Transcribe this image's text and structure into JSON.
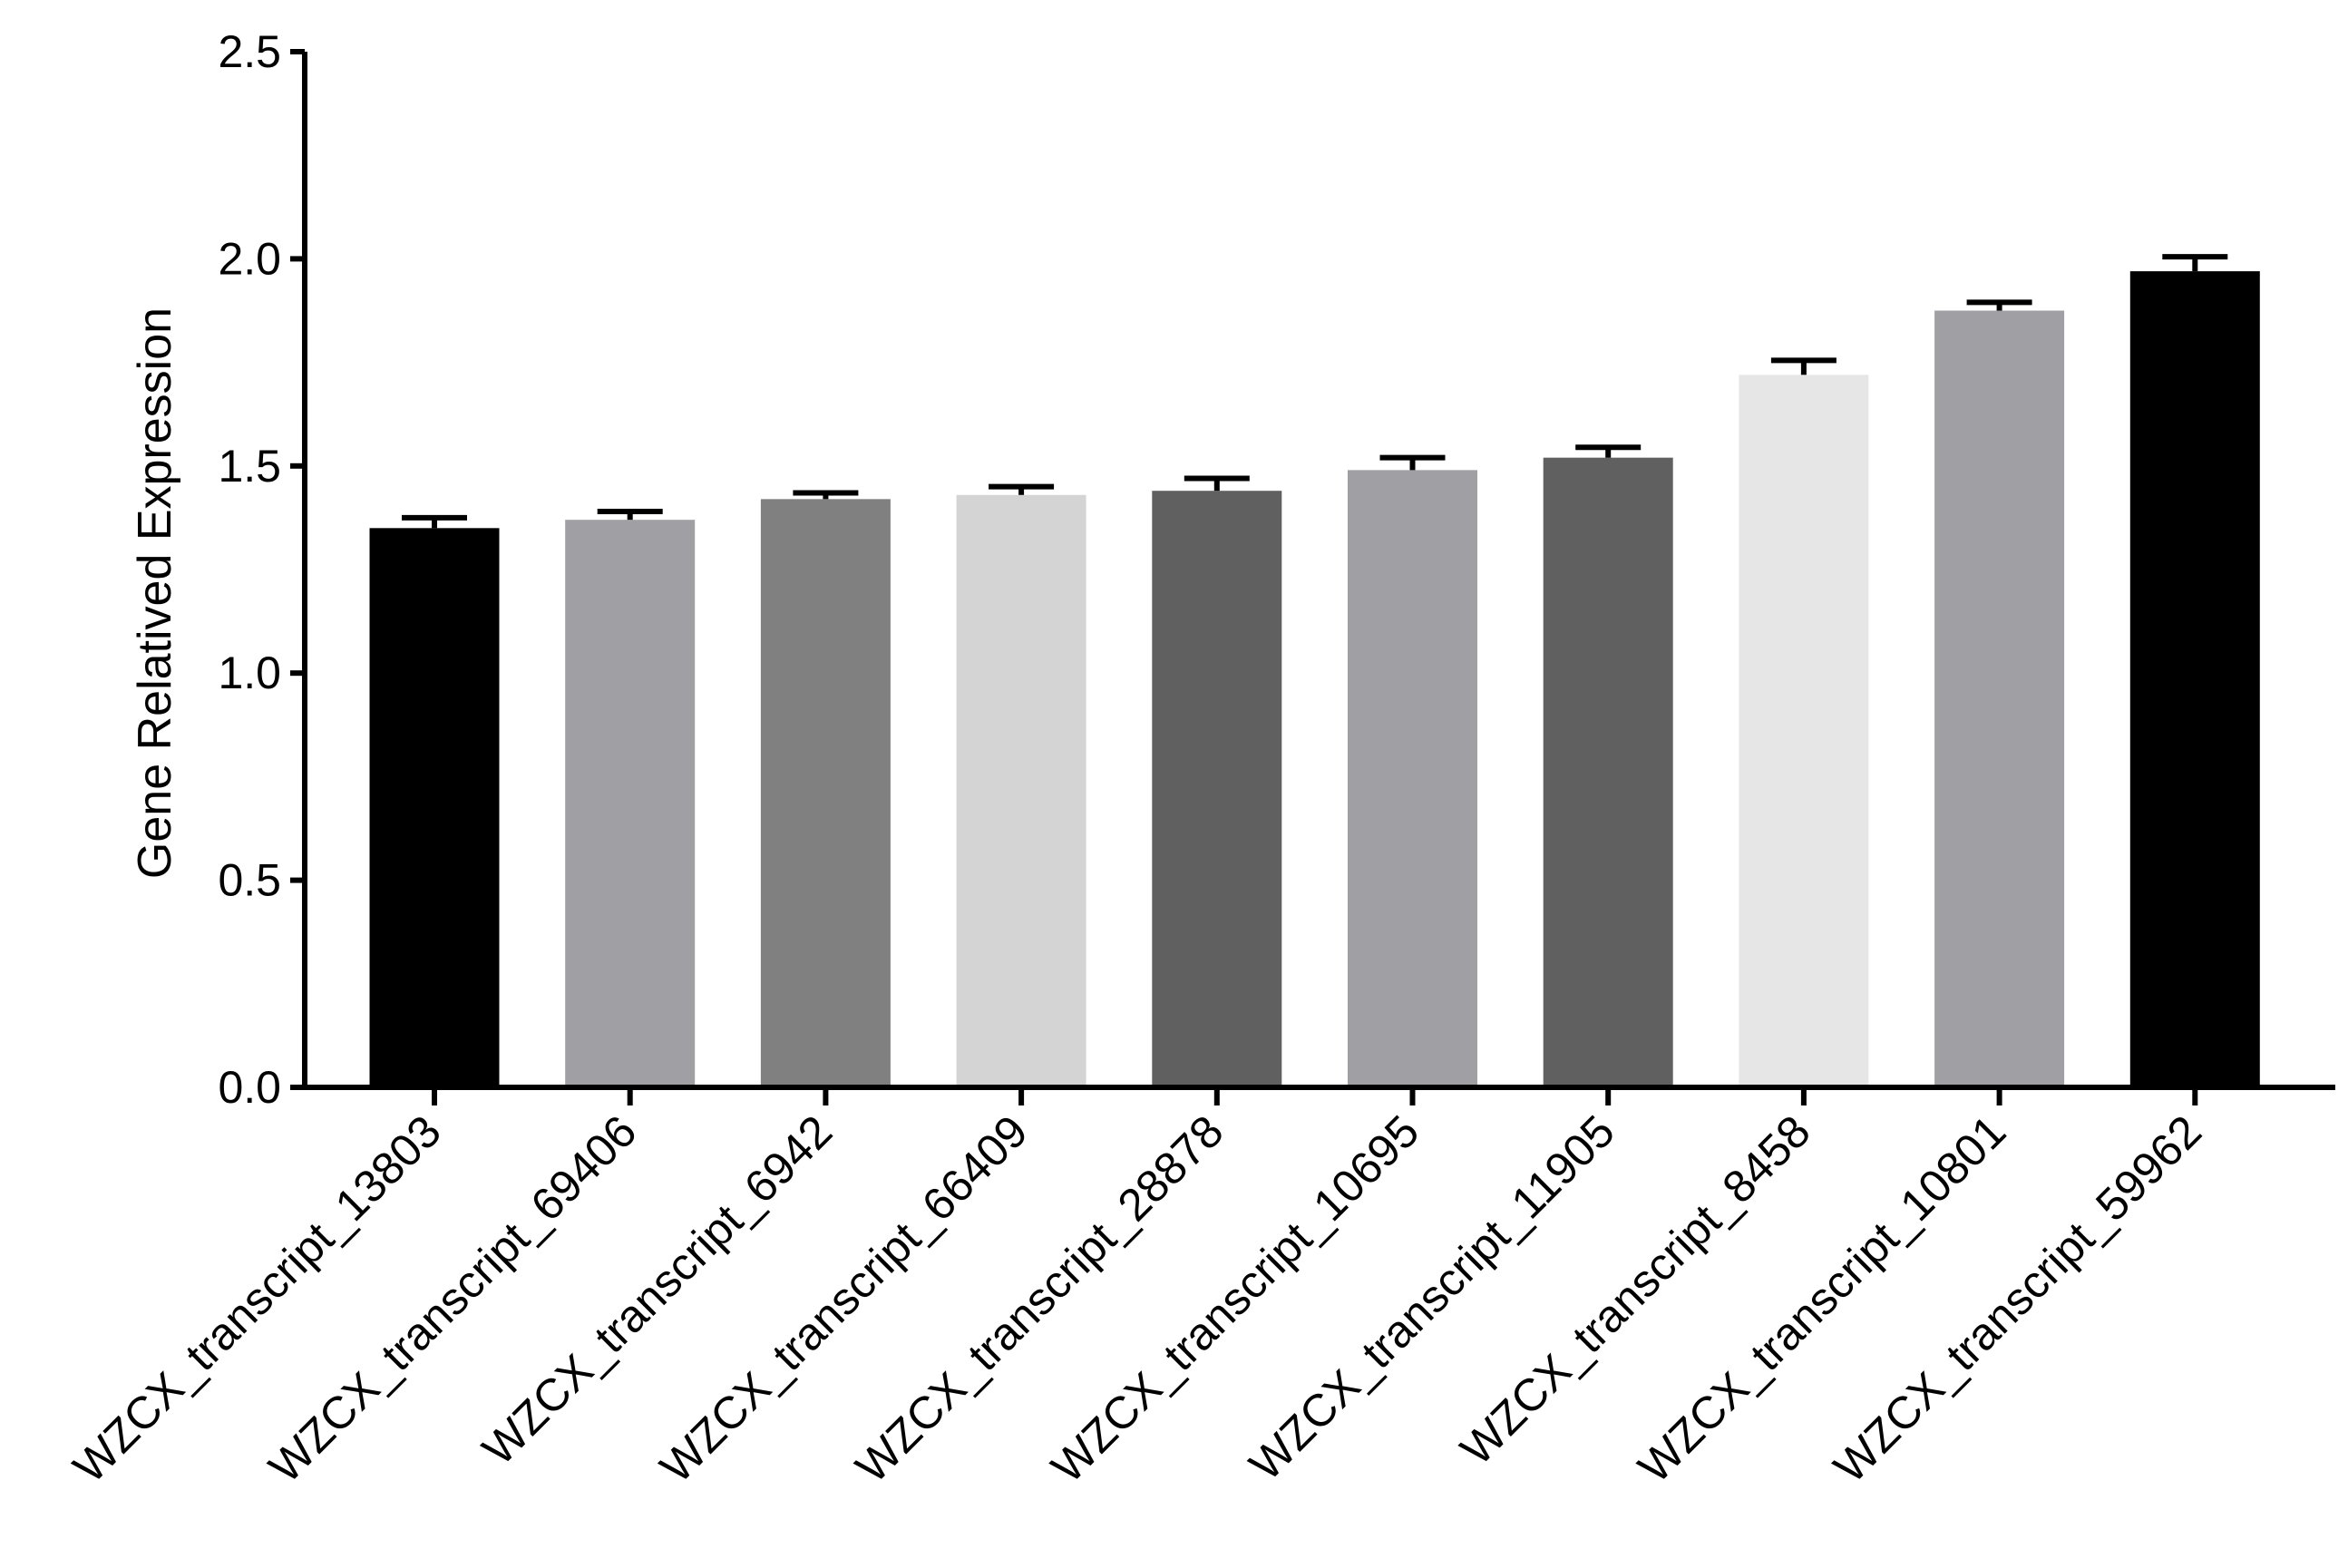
{
  "chart_data": {
    "type": "bar",
    "title": "",
    "xlabel": "",
    "ylabel": "Gene Relatived Expression",
    "ylim": [
      0,
      2.5
    ],
    "yticks": [
      "0.0",
      "0.5",
      "1.0",
      "1.5",
      "2.0",
      "2.5"
    ],
    "grid": false,
    "legend": "none",
    "categories": [
      "WZCX_transcript_13803",
      "WZCX_transcript_69406",
      "WZCX_transcript_6942",
      "WZCX_transcript_66409",
      "WZCX_transcript_28878",
      "WZCX_transcript_10695",
      "WZCX_transcript_11905",
      "WZCX_transcript_8458",
      "WZCX_transcript_10801",
      "WZCX_transcript_59962"
    ],
    "values": [
      1.35,
      1.37,
      1.42,
      1.43,
      1.44,
      1.49,
      1.52,
      1.72,
      1.875,
      1.97
    ],
    "error": [
      0.025,
      0.02,
      0.015,
      0.02,
      0.03,
      0.03,
      0.025,
      0.035,
      0.02,
      0.035
    ],
    "colors": [
      "#000000",
      "#a0a0a4",
      "#808080",
      "#d4d4d4",
      "#606060",
      "#a0a0a4",
      "#606060",
      "#e6e6e6",
      "#a0a0a4",
      "#000000"
    ]
  }
}
